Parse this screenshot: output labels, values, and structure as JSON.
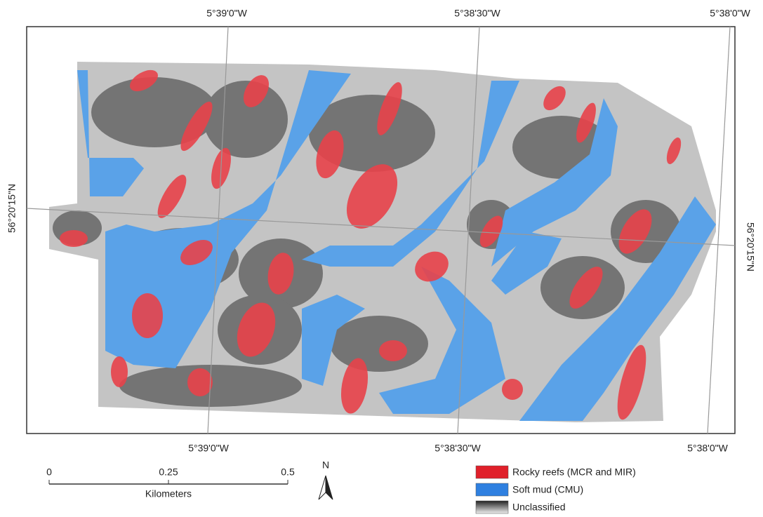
{
  "graticule": {
    "top": [
      "5°39'0\"W",
      "5°38'30\"W",
      "5°38'0\"W"
    ],
    "bottom": [
      "5°39'0\"W",
      "5°38'30\"W",
      "5°38'0\"W"
    ],
    "left": "56°20'15\"N",
    "right": "56°20'15\"N"
  },
  "scale_bar": {
    "ticks": [
      "0",
      "0.25",
      "0.5"
    ],
    "unit": "Kilometers"
  },
  "north_arrow": "N",
  "legend": [
    {
      "label": "Rocky reefs (MCR and MIR)",
      "color": "#e0202a"
    },
    {
      "label": "Soft mud (CMU)",
      "color": "#2f80e0"
    },
    {
      "label": "Unclassified"
    }
  ]
}
